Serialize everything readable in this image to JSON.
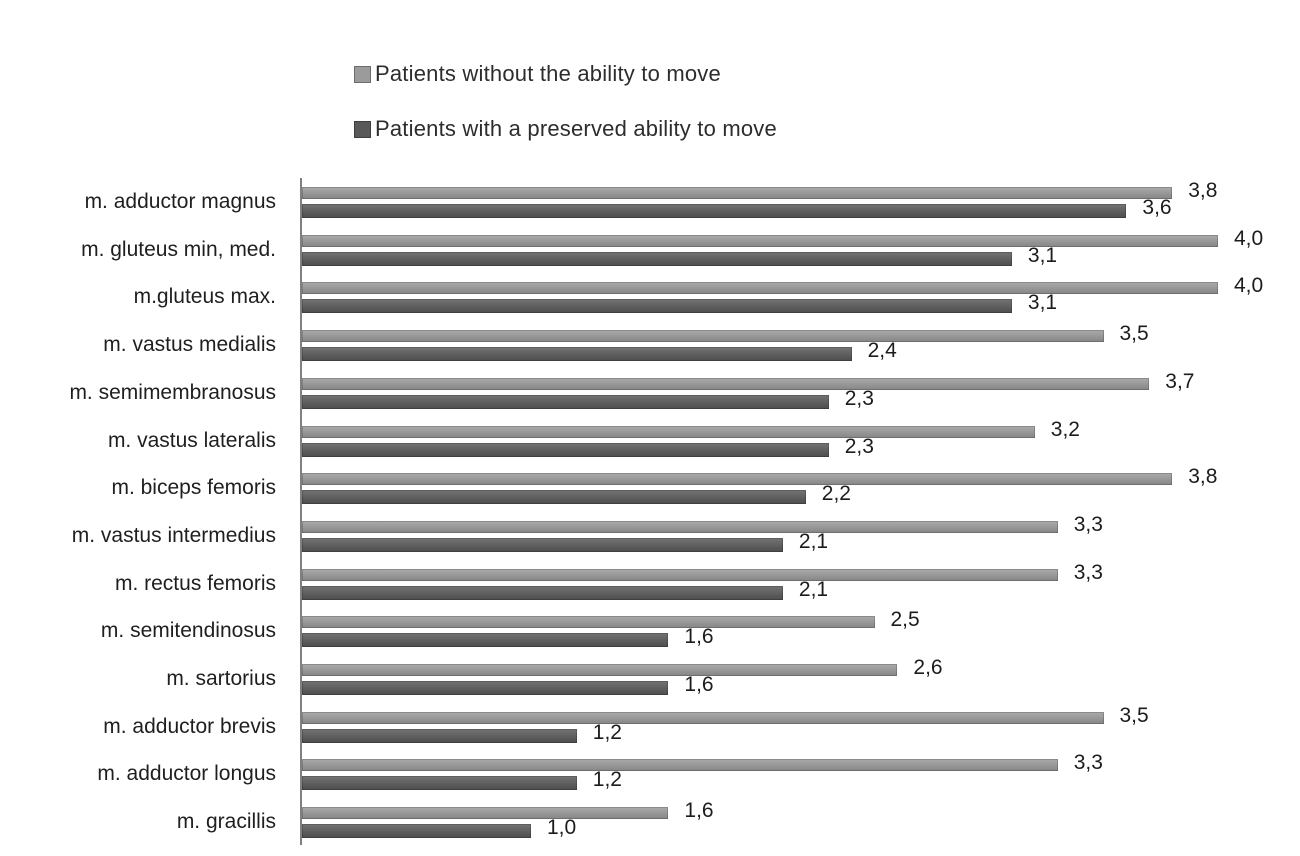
{
  "chart_data": {
    "type": "bar",
    "orientation": "horizontal",
    "title": "",
    "xlabel": "",
    "ylabel": "",
    "xlim": [
      0,
      4.0
    ],
    "grid": false,
    "legend_position": "top-center",
    "background_color": "#ffffff",
    "axis_color": "#808080",
    "text_color": "#1f1f1f",
    "categories": [
      "m. adductor magnus",
      "m. gluteus min, med.",
      "m.gluteus max.",
      "m. vastus medialis",
      "m. semimembranosus",
      "m. vastus lateralis",
      "m. biceps femoris",
      "m. vastus intermedius",
      "m. rectus femoris",
      "m. semitendinosus",
      "m. sartorius",
      "m. adductor brevis",
      "m. adductor longus",
      "m. gracillis"
    ],
    "series": [
      {
        "name": "Patients without the ability to move",
        "color": "#9b9b9b",
        "values": [
          3.8,
          4.0,
          4.0,
          3.5,
          3.7,
          3.2,
          3.8,
          3.3,
          3.3,
          2.5,
          2.6,
          3.5,
          3.3,
          1.6
        ],
        "labels": [
          "3,8",
          "4,0",
          "4,0",
          "3,5",
          "3,7",
          "3,2",
          "3,8",
          "3,3",
          "3,3",
          "2,5",
          "2,6",
          "3,5",
          "3,3",
          "1,6"
        ]
      },
      {
        "name": "Patients with a preserved ability to move",
        "color": "#595959",
        "values": [
          3.6,
          3.1,
          3.1,
          2.4,
          2.3,
          2.3,
          2.2,
          2.1,
          2.1,
          1.6,
          1.6,
          1.2,
          1.2,
          1.0
        ],
        "labels": [
          "3,6",
          "3,1",
          "3,1",
          "2,4",
          "2,3",
          "2,3",
          "2,2",
          "2,1",
          "2,1",
          "1,6",
          "1,6",
          "1,2",
          "1,2",
          "1,0"
        ]
      }
    ]
  }
}
